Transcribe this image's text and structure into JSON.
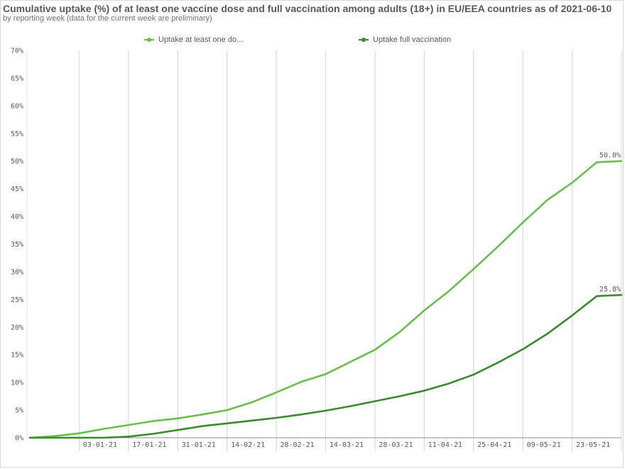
{
  "header": {
    "title": "Cumulative uptake (%) of at least one vaccine dose and full vaccination among adults (18+) in EU/EEA countries as of 2021-06-10",
    "subtitle": "by reporting week (data for the current week are preliminary)"
  },
  "colors": {
    "series_one_dose": "#6abf4b",
    "series_full": "#3a8a2e",
    "grid": "#d9d9d9",
    "axis": "#8c8c8c"
  },
  "chart_data": {
    "type": "line",
    "title": "Cumulative uptake (%) of at least one vaccine dose and full vaccination among adults (18+) in EU/EEA countries as of 2021-06-10",
    "subtitle": "by reporting week (data for the current week are preliminary)",
    "xlabel": "",
    "ylabel": "",
    "ylim": [
      0,
      70
    ],
    "y_ticks": [
      0,
      5,
      10,
      15,
      20,
      25,
      30,
      35,
      40,
      45,
      50,
      55,
      60,
      65,
      70
    ],
    "y_tick_labels": [
      "0%",
      "5%",
      "10%",
      "15%",
      "20%",
      "25%",
      "30%",
      "35%",
      "40%",
      "45%",
      "50%",
      "55%",
      "60%",
      "65%",
      "70%"
    ],
    "x": [
      "20-12-20",
      "27-12-20",
      "03-01-21",
      "10-01-21",
      "17-01-21",
      "24-01-21",
      "31-01-21",
      "07-02-21",
      "14-02-21",
      "21-02-21",
      "28-02-21",
      "07-03-21",
      "14-03-21",
      "21-03-21",
      "28-03-21",
      "04-04-21",
      "11-04-21",
      "18-04-21",
      "25-04-21",
      "02-05-21",
      "09-05-21",
      "16-05-21",
      "23-05-21",
      "30-05-21",
      "06-06-21"
    ],
    "x_tick_labels": [
      "03-01-21",
      "17-01-21",
      "31-01-21",
      "14-02-21",
      "28-02-21",
      "14-03-21",
      "28-03-21",
      "11-04-21",
      "25-04-21",
      "09-05-21",
      "23-05-21"
    ],
    "grid": true,
    "legend_position": "top",
    "series": [
      {
        "name": "Uptake at least one do...",
        "values": [
          0.0,
          0.3,
          0.8,
          1.6,
          2.3,
          3.0,
          3.5,
          4.2,
          5.0,
          6.4,
          8.2,
          10.1,
          11.5,
          13.7,
          15.9,
          19.1,
          23.0,
          26.5,
          30.5,
          34.6,
          38.9,
          43.0,
          46.1,
          49.8,
          50.0
        ],
        "end_label": "50.0%"
      },
      {
        "name": "Uptake full vaccination",
        "values": [
          0.0,
          0.0,
          0.0,
          0.0,
          0.2,
          0.7,
          1.4,
          2.1,
          2.6,
          3.1,
          3.6,
          4.2,
          4.9,
          5.7,
          6.6,
          7.5,
          8.5,
          9.8,
          11.4,
          13.6,
          16.0,
          18.8,
          22.1,
          25.6,
          25.8
        ],
        "end_label": "25.8%"
      }
    ]
  }
}
